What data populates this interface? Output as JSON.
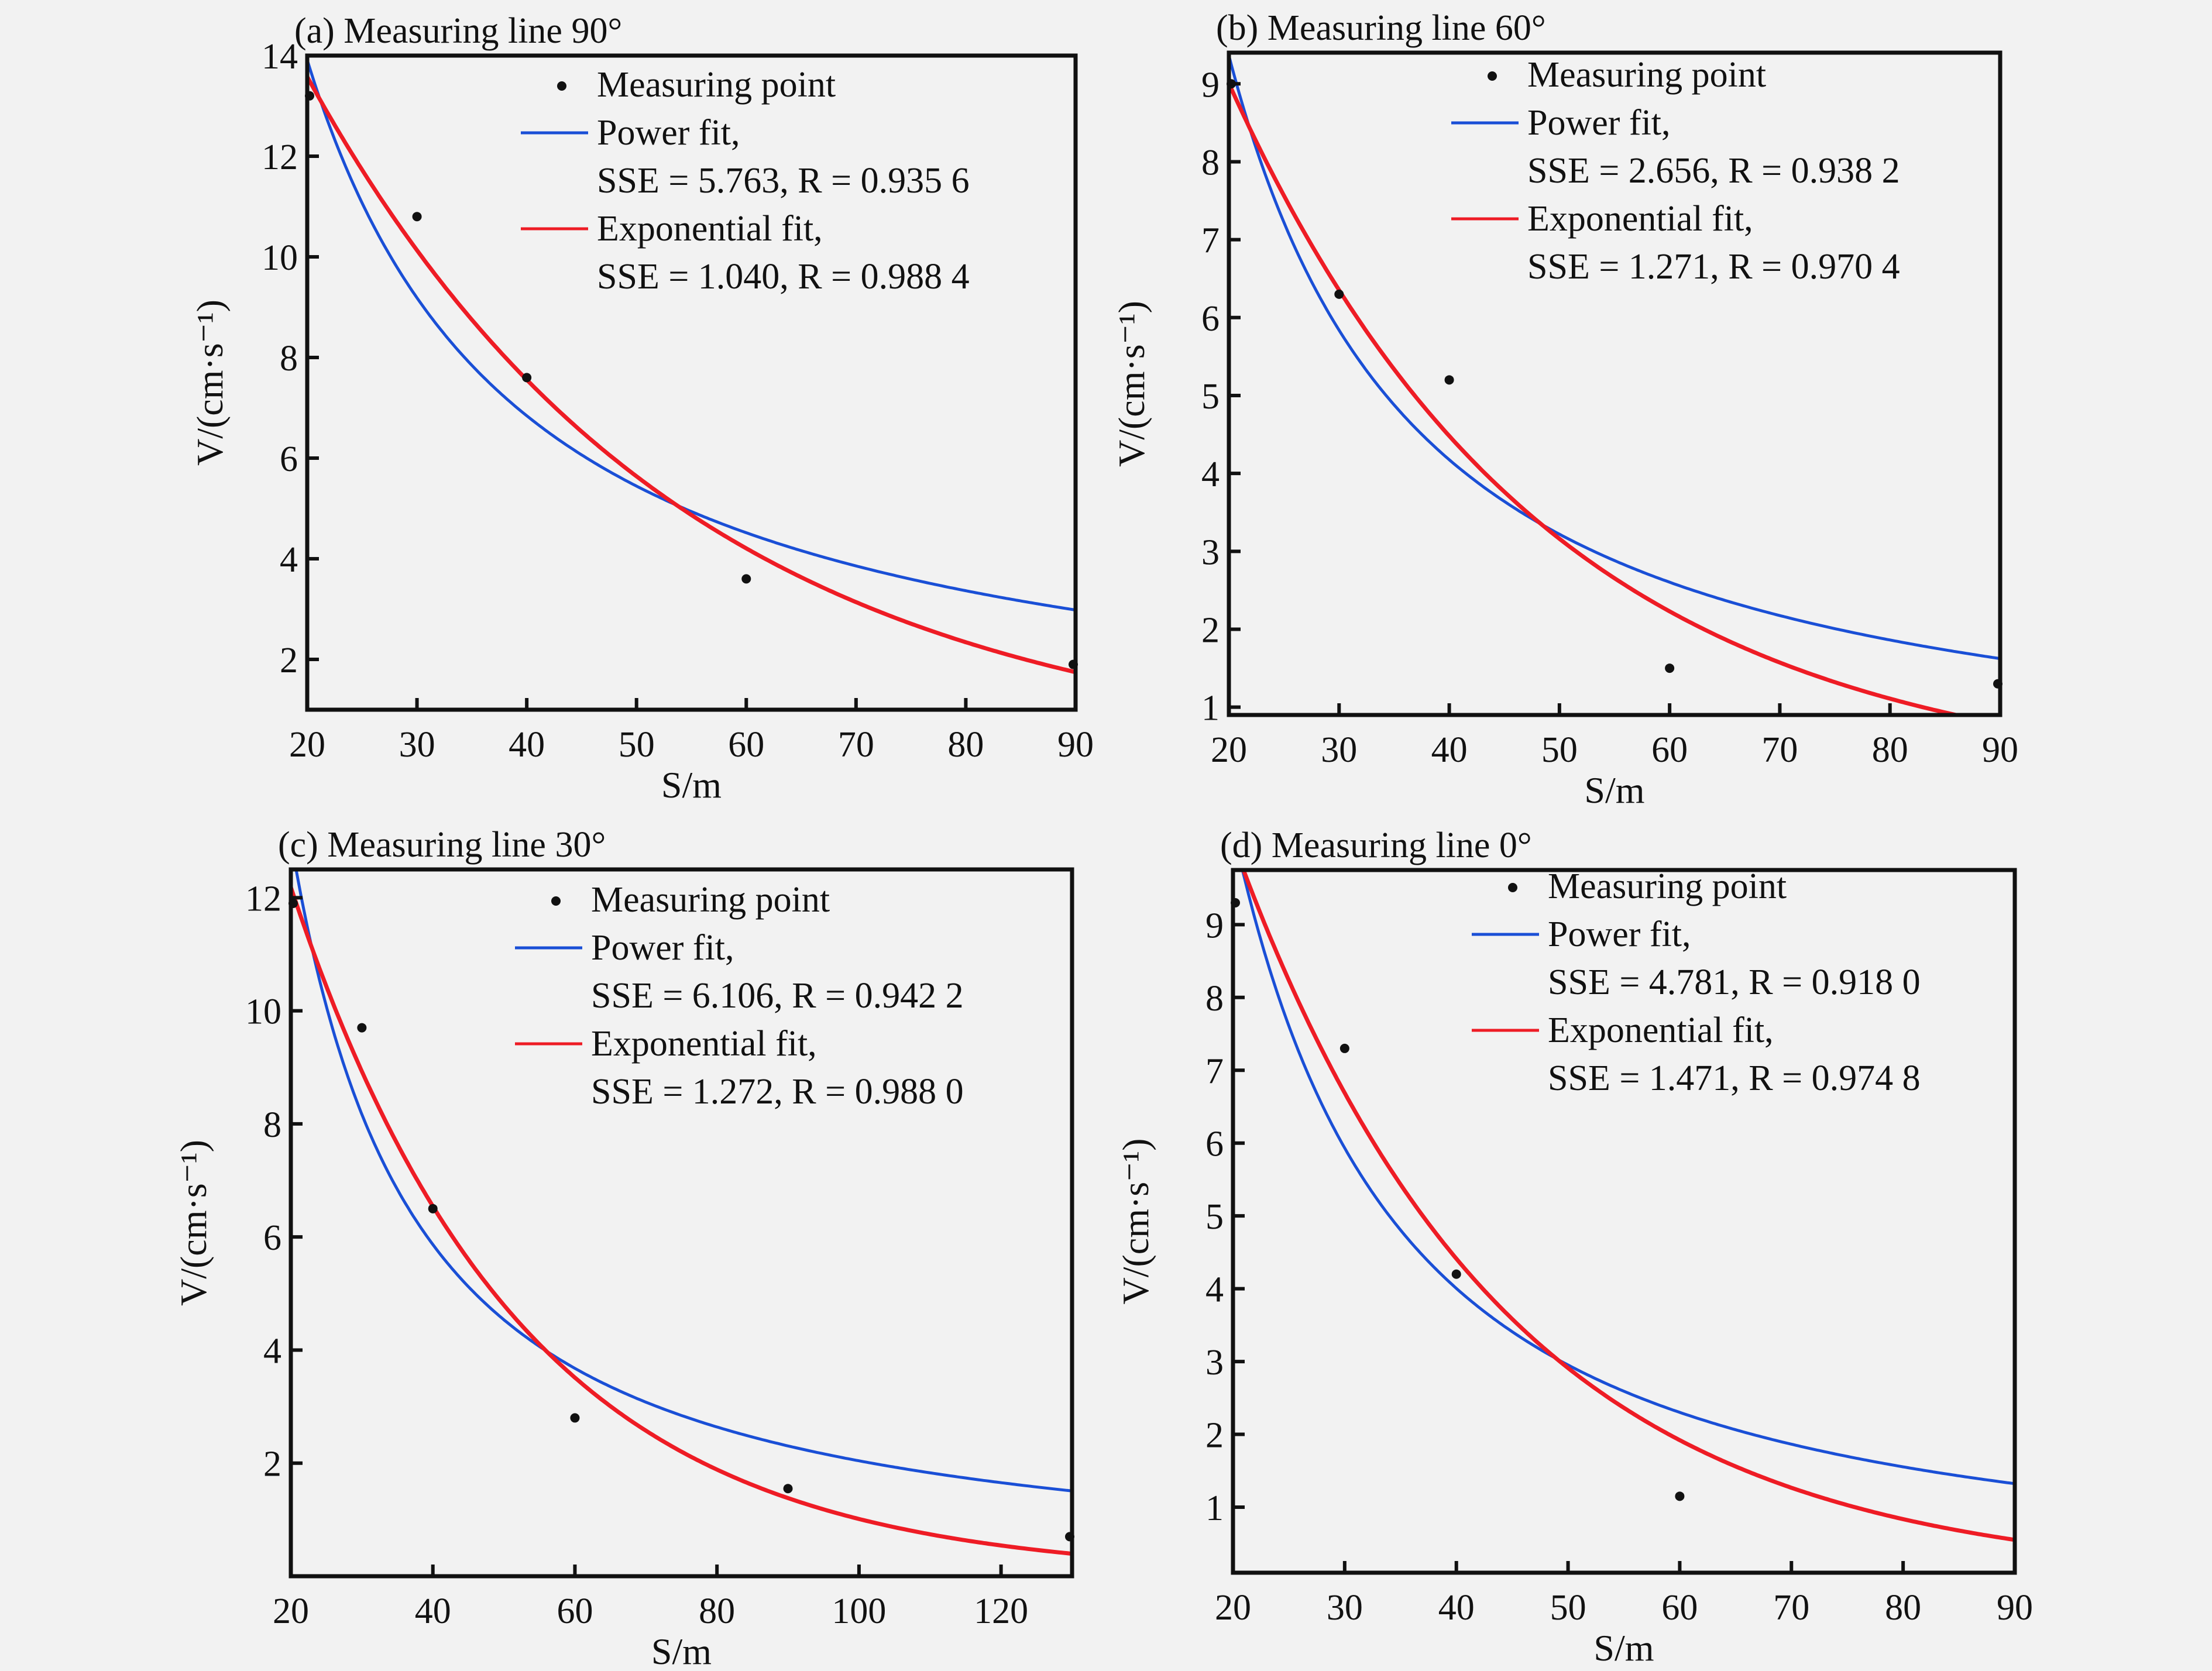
{
  "figure": {
    "background": "#f2f2f2",
    "colors": {
      "power": "#1a4fd6",
      "exponential": "#ee1c25",
      "points": "#111111",
      "axes": "#111111"
    }
  },
  "chart_data": [
    {
      "type": "scatter",
      "id": "a",
      "title": "(a) Measuring line 90°",
      "xlabel": "S/m",
      "ylabel": "V/(cm·s⁻¹)",
      "xlim": [
        20,
        90
      ],
      "ylim": [
        1.0,
        14.0
      ],
      "xticks": [
        20,
        30,
        40,
        50,
        60,
        70,
        80,
        90
      ],
      "yticks": [
        2,
        4,
        6,
        8,
        10,
        12,
        14
      ],
      "points": {
        "x": [
          20,
          30,
          40,
          60,
          90
        ],
        "y": [
          13.2,
          10.8,
          7.6,
          3.6,
          1.9
        ]
      },
      "series": [
        {
          "name": "Power fit",
          "model": "power",
          "a": 299,
          "b": -1.024,
          "color": "#1a4fd6",
          "stats": "SSE = 5.763, R = 0.935 6",
          "sse": "5.763",
          "r": "0.935 6"
        },
        {
          "name": "Exponential fit",
          "model": "exponential",
          "a": 24.4,
          "b": -0.0293,
          "color": "#ee1c25",
          "stats": "SSE = 1.040, R = 0.988 4",
          "sse": "1.040",
          "r": "0.988 4"
        }
      ],
      "legend": {
        "placement": "top-right",
        "point_label": "Measuring point",
        "power_label": "Power fit,",
        "exp_label": "Exponential fit,"
      },
      "grid": false
    },
    {
      "type": "scatter",
      "id": "b",
      "title": "(b) Measuring line 60°",
      "xlabel": "S/m",
      "ylabel": "V/(cm·s⁻¹)",
      "xlim": [
        20,
        90
      ],
      "ylim": [
        0.9,
        9.4
      ],
      "xticks": [
        20,
        30,
        40,
        50,
        60,
        70,
        80,
        90
      ],
      "yticks": [
        1,
        2,
        3,
        4,
        5,
        6,
        7,
        8,
        9
      ],
      "points": {
        "x": [
          20,
          30,
          40,
          60,
          90
        ],
        "y": [
          9.0,
          6.3,
          5.2,
          1.5,
          1.3
        ]
      },
      "series": [
        {
          "name": "Power fit",
          "model": "power",
          "a": 307,
          "b": -1.165,
          "color": "#1a4fd6",
          "stats": "SSE = 2.656, R = 0.938 2",
          "sse": "2.656",
          "r": "0.938 2"
        },
        {
          "name": "Exponential fit",
          "model": "exponential",
          "a": 18.1,
          "b": -0.0349,
          "color": "#ee1c25",
          "stats": "SSE = 1.271, R = 0.970 4",
          "sse": "1.271",
          "r": "0.970 4"
        }
      ],
      "legend": {
        "placement": "top-right",
        "point_label": "Measuring point",
        "power_label": "Power fit,",
        "exp_label": "Exponential fit,"
      },
      "grid": false
    },
    {
      "type": "scatter",
      "id": "c",
      "title": "(c) Measuring line 30°",
      "xlabel": "S/m",
      "ylabel": "V/(cm·s⁻¹)",
      "xlim": [
        20,
        130
      ],
      "ylim": [
        0.0,
        12.5
      ],
      "xticks": [
        20,
        40,
        60,
        80,
        100,
        120
      ],
      "yticks": [
        2,
        4,
        6,
        8,
        10,
        12
      ],
      "points": {
        "x": [
          20,
          30,
          40,
          60,
          90,
          130
        ],
        "y": [
          11.9,
          9.7,
          6.5,
          2.8,
          1.55,
          0.7
        ]
      },
      "series": [
        {
          "name": "Power fit",
          "model": "power",
          "a": 411,
          "b": -1.152,
          "color": "#1a4fd6",
          "stats": "SSE = 6.106, R = 0.942 2",
          "sse": "6.106",
          "r": "0.942 2"
        },
        {
          "name": "Exponential fit",
          "model": "exponential",
          "a": 22.7,
          "b": -0.0311,
          "color": "#ee1c25",
          "stats": "SSE = 1.272, R = 0.988 0",
          "sse": "1.272",
          "r": "0.988 0"
        }
      ],
      "legend": {
        "placement": "top-right",
        "point_label": "Measuring point",
        "power_label": "Power fit,",
        "exp_label": "Exponential fit,"
      },
      "grid": false
    },
    {
      "type": "scatter",
      "id": "d",
      "title": "(d) Measuring line 0°",
      "xlabel": "S/m",
      "ylabel": "V/(cm·s⁻¹)",
      "xlim": [
        20,
        90
      ],
      "ylim": [
        0.1,
        9.75
      ],
      "xticks": [
        20,
        30,
        40,
        50,
        60,
        70,
        80,
        90
      ],
      "yticks": [
        1,
        2,
        3,
        4,
        5,
        6,
        7,
        8,
        9
      ],
      "points": {
        "x": [
          20,
          30,
          40,
          60
        ],
        "y": [
          9.3,
          7.3,
          4.2,
          1.15
        ]
      },
      "series": [
        {
          "name": "Power fit",
          "model": "power",
          "a": 618,
          "b": -1.366,
          "color": "#1a4fd6",
          "stats": "SSE = 4.781, R = 0.918 0",
          "sse": "4.781",
          "r": "0.918 0"
        },
        {
          "name": "Exponential fit",
          "model": "exponential",
          "a": 23.3,
          "b": -0.0416,
          "color": "#ee1c25",
          "stats": "SSE = 1.471, R = 0.974 8",
          "sse": "1.471",
          "r": "0.974 8"
        }
      ],
      "legend": {
        "placement": "top-right",
        "point_label": "Measuring point",
        "power_label": "Power fit,",
        "exp_label": "Exponential fit,"
      },
      "grid": false
    }
  ]
}
